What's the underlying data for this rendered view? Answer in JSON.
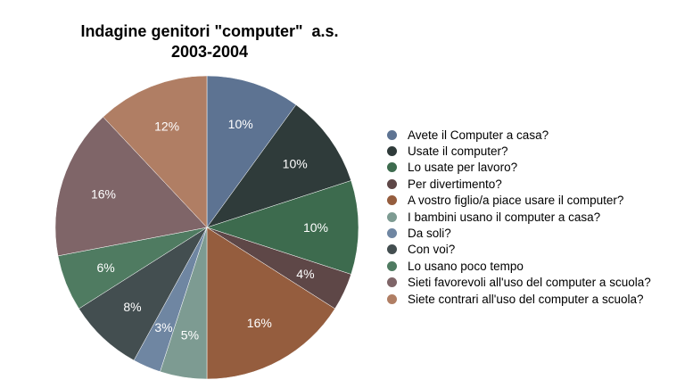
{
  "chart_data": {
    "type": "pie",
    "title_lines": [
      "Indagine genitori \"computer\"  a.s.",
      "2003-2004"
    ],
    "slices": [
      {
        "label": "Avete il Computer a casa?",
        "value": 10,
        "value_label": "10%",
        "color": "#5d7392"
      },
      {
        "label": "Usate il computer?",
        "value": 10,
        "value_label": "10%",
        "color": "#2f3b3a"
      },
      {
        "label": "Lo usate per lavoro?",
        "value": 10,
        "value_label": "10%",
        "color": "#3d6b4e"
      },
      {
        "label": "Per divertimento?",
        "value": 4,
        "value_label": "4%",
        "color": "#5e4747"
      },
      {
        "label": "A vostro figlio/a piace usare il computer?",
        "value": 16,
        "value_label": "16%",
        "color": "#955d3e"
      },
      {
        "label": "I bambini usano il computer a casa?",
        "value": 5,
        "value_label": "5%",
        "color": "#7d9b92"
      },
      {
        "label": "Da soli?",
        "value": 3,
        "value_label": "3%",
        "color": "#6f86a2"
      },
      {
        "label": "Con voi?",
        "value": 8,
        "value_label": "8%",
        "color": "#434e50"
      },
      {
        "label": "Lo usano poco tempo",
        "value": 6,
        "value_label": "6%",
        "color": "#4f7b61"
      },
      {
        "label": "Sieti favorevoli all'uso del computer a scuola?",
        "value": 16,
        "value_label": "16%",
        "color": "#7f6568"
      },
      {
        "label": "Siete contrari all'uso del computer a scuola?",
        "value": 12,
        "value_label": "12%",
        "color": "#b07e64"
      }
    ],
    "legend_position": "right"
  }
}
